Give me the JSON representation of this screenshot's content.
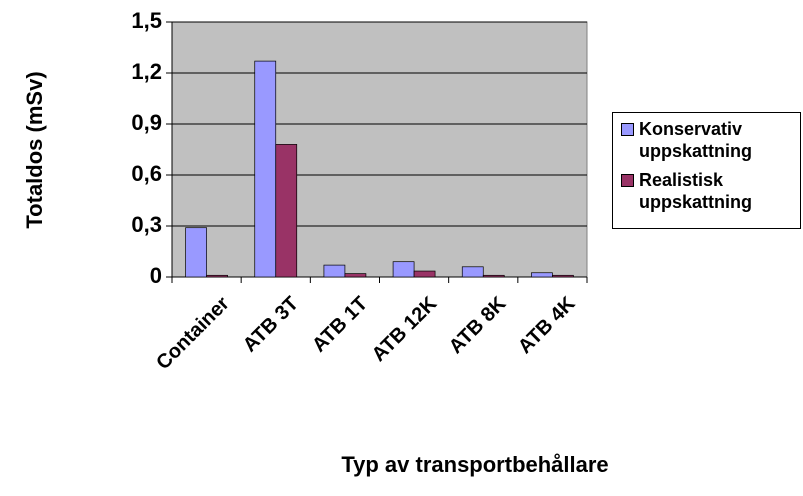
{
  "chart_data": {
    "type": "bar",
    "x_label": "Typ av transportbehållare",
    "y_label": "Totaldos (mSv)",
    "categories": [
      "Container",
      "ATB 3T",
      "ATB 1T",
      "ATB 12K",
      "ATB 8K",
      "ATB 4K"
    ],
    "series": [
      {
        "name": "Konservativ uppskattning",
        "color": "#9999ff",
        "values": [
          0.29,
          1.27,
          0.07,
          0.09,
          0.06,
          0.025
        ]
      },
      {
        "name": "Realistisk uppskattning",
        "color": "#993366",
        "values": [
          0.01,
          0.78,
          0.02,
          0.035,
          0.01,
          0.01
        ]
      }
    ],
    "ylim": [
      0,
      1.5
    ],
    "yticks": [
      0,
      {
        "value": 0.3,
        "label": "0,3"
      },
      {
        "value": 0.6,
        "label": "0,6"
      },
      {
        "value": 0.9,
        "label": "0,9"
      },
      {
        "value": 1.2,
        "label": "1,2"
      },
      {
        "value": 1.5,
        "label": "1,5"
      }
    ],
    "grid": true,
    "legend": "right"
  }
}
